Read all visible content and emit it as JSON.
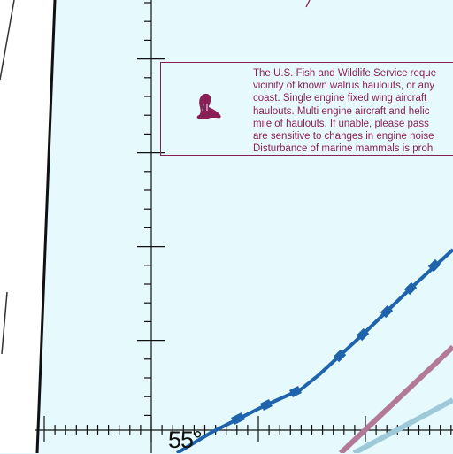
{
  "map": {
    "background_color": "#e6fafd",
    "land_color": "#ffffff",
    "notice_color": "#8a1f55",
    "route_color": "#1f63ad",
    "pink_line_color": "#b27a98",
    "blue_line_color": "#9ec9d8"
  },
  "notice": {
    "icon": "walrus-icon",
    "lines": [
      "The U.S. Fish and Wildlife Service reque",
      "vicinity of known walrus haulouts, or any",
      "coast.  Single engine fixed wing aircraft",
      "haulouts.  Multi engine aircraft and helic",
      "mile of haulouts.  If unable, please pass",
      "are sensitive to changes in engine noise",
      "Disturbance of marine mammals is proh"
    ]
  },
  "latitude_label": "55°"
}
